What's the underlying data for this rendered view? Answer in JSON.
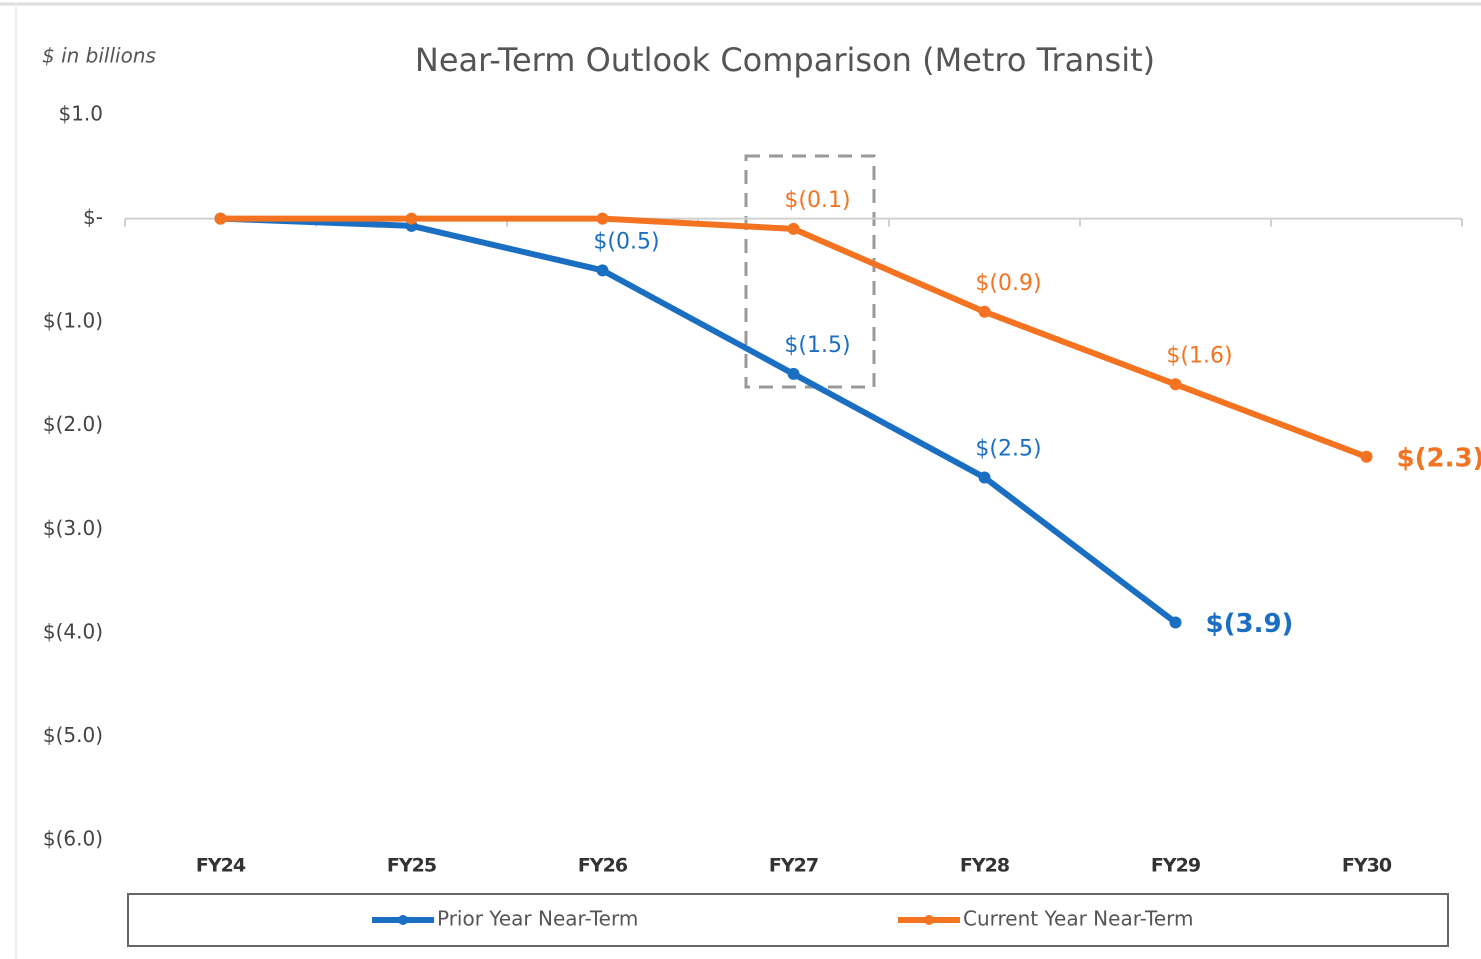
{
  "chart_data": {
    "type": "line",
    "title": "Near-Term Outlook Comparison (Metro Transit)",
    "y_axis_label": "$ in billions",
    "categories": [
      "FY24",
      "FY25",
      "FY26",
      "FY27",
      "FY28",
      "FY29",
      "FY30"
    ],
    "series": [
      {
        "name": "Prior Year Near-Term",
        "color": "#1b6fc2",
        "values": [
          0,
          -0.07,
          -0.5,
          -1.5,
          -2.5,
          -3.9,
          null
        ],
        "value_labels": [
          null,
          null,
          "$(0.5)",
          "$(1.5)",
          "$(2.5)",
          "$(3.9)",
          null
        ]
      },
      {
        "name": "Current Year Near-Term",
        "color": "#f47320",
        "values": [
          0,
          0,
          0,
          -0.1,
          -0.9,
          -1.6,
          -2.3
        ],
        "value_labels": [
          null,
          null,
          null,
          "$(0.1)",
          "$(0.9)",
          "$(1.6)",
          "$(2.3)"
        ]
      }
    ],
    "ylim": [
      -6,
      1
    ],
    "yticks": [
      {
        "value": 1,
        "label": "$1.0"
      },
      {
        "value": 0,
        "label": "$-"
      },
      {
        "value": -1,
        "label": "$(1.0)"
      },
      {
        "value": -2,
        "label": "$(2.0)"
      },
      {
        "value": -3,
        "label": "$(3.0)"
      },
      {
        "value": -4,
        "label": "$(4.0)"
      },
      {
        "value": -5,
        "label": "$(5.0)"
      },
      {
        "value": -6,
        "label": "$(6.0)"
      }
    ],
    "grid": false,
    "legend": "bottom"
  }
}
